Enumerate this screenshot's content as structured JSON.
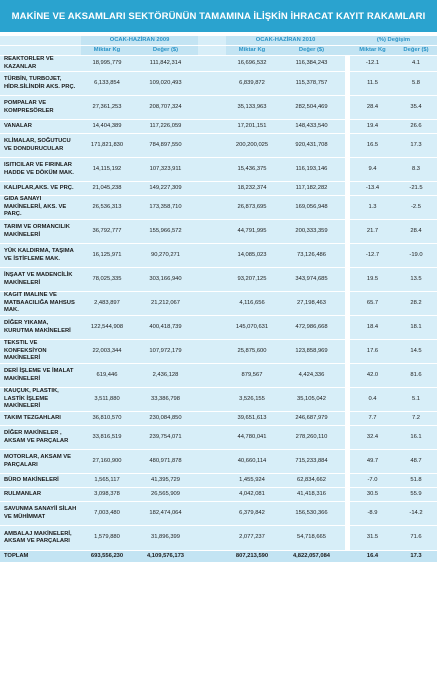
{
  "title": "MAKİNE VE AKSAMLARI SEKTÖRÜNÜN TAMAMINA İLİŞKİN İHRACAT KAYIT RAKAMLARI",
  "headers": {
    "period_2009": "OCAK-HAZİRAN 2009",
    "period_2010": "OCAK-HAZİRAN 2010",
    "change": "(%) Değişim",
    "miktar": "Miktar Kg",
    "deger": "Değer ($)"
  },
  "rows": [
    {
      "name": "REAKTÖRLER VE KAZANLAR",
      "q09": "18,995,779",
      "v09": "111,842,314",
      "q10": "16,696,532",
      "v10": "116,384,243",
      "dq": "-12.1",
      "dv": "4.1"
    },
    {
      "name": "TÜRBİN, TURBOJET, HİDR.SİLİNDİR AKS. PRÇ.",
      "q09": "6,133,854",
      "v09": "109,020,493",
      "q10": "6,839,872",
      "v10": "115,378,757",
      "dq": "11.5",
      "dv": "5.8"
    },
    {
      "name": "POMPALAR VE KOMPRESÖRLER",
      "q09": "27,361,253",
      "v09": "208,707,324",
      "q10": "35,133,963",
      "v10": "282,504,469",
      "dq": "28.4",
      "dv": "35.4"
    },
    {
      "name": "VANALAR",
      "q09": "14,404,389",
      "v09": "117,226,059",
      "q10": "17,201,151",
      "v10": "148,433,540",
      "dq": "19.4",
      "dv": "26.6"
    },
    {
      "name": "KLİMALAR, SOĞUTUCU VE DONDURUCULAR",
      "q09": "171,821,830",
      "v09": "784,897,550",
      "q10": "200,200,025",
      "v10": "920,431,708",
      "dq": "16.5",
      "dv": "17.3"
    },
    {
      "name": "ISITICILAR VE FIRINLAR HADDE VE DÖKÜM MAK.",
      "q09": "14,115,192",
      "v09": "107,323,911",
      "q10": "15,436,375",
      "v10": "116,193,146",
      "dq": "9.4",
      "dv": "8.3"
    },
    {
      "name": "KALIPLAR,AKS. VE PRÇ.",
      "q09": "21,045,238",
      "v09": "149,227,309",
      "q10": "18,232,374",
      "v10": "117,182,282",
      "dq": "-13.4",
      "dv": "-21.5"
    },
    {
      "name": "GIDA SANAYİ MAKİNELERİ, AKS. VE PARÇ.",
      "q09": "26,536,313",
      "v09": "173,358,710",
      "q10": "26,873,695",
      "v10": "169,056,948",
      "dq": "1.3",
      "dv": "-2.5"
    },
    {
      "name": "TARIM VE ORMANCILIK MAKİNELERİ",
      "q09": "36,792,777",
      "v09": "155,966,572",
      "q10": "44,791,995",
      "v10": "200,333,359",
      "dq": "21.7",
      "dv": "28.4"
    },
    {
      "name": "YÜK KALDIRMA, TAŞIMA VE İSTİFLEME MAK.",
      "q09": "16,125,971",
      "v09": "90,270,271",
      "q10": "14,085,023",
      "v10": "73,126,486",
      "dq": "-12.7",
      "dv": "-19.0"
    },
    {
      "name": "İNŞAAT VE MADENCİLİK MAKİNELERİ",
      "q09": "78,025,335",
      "v09": "303,166,940",
      "q10": "93,207,125",
      "v10": "343,974,685",
      "dq": "19.5",
      "dv": "13.5"
    },
    {
      "name": "KAĞIT İMALİNE VE MATBAACILIĞA MAHSUS MAK.",
      "q09": "2,483,897",
      "v09": "21,212,067",
      "q10": "4,116,656",
      "v10": "27,198,463",
      "dq": "65.7",
      "dv": "28.2"
    },
    {
      "name": "DİĞER YIKAMA, KURUTMA MAKİNELERİ",
      "q09": "122,544,908",
      "v09": "400,418,739",
      "q10": "145,070,631",
      "v10": "472,986,668",
      "dq": "18.4",
      "dv": "18.1"
    },
    {
      "name": "TEKSTİL VE KONFEKSİYON MAKİNELERİ",
      "q09": "22,003,344",
      "v09": "107,972,179",
      "q10": "25,875,600",
      "v10": "123,858,969",
      "dq": "17.6",
      "dv": "14.5"
    },
    {
      "name": "DERİ İŞLEME VE İMALAT MAKİNELERİ",
      "q09": "619,446",
      "v09": "2,436,128",
      "q10": "879,567",
      "v10": "4,424,336",
      "dq": "42.0",
      "dv": "81.6"
    },
    {
      "name": "KAUÇUK, PLASTİK, LASTİK İŞLEME MAKİNELERİ",
      "q09": "3,511,880",
      "v09": "33,386,798",
      "q10": "3,526,155",
      "v10": "35,105,042",
      "dq": "0.4",
      "dv": "5.1"
    },
    {
      "name": "TAKIM TEZGAHLARI",
      "q09": "36,810,570",
      "v09": "230,084,850",
      "q10": "39,651,613",
      "v10": "246,687,979",
      "dq": "7.7",
      "dv": "7.2"
    },
    {
      "name": "DİĞER MAKİNELER , AKSAM VE PARÇALAR",
      "q09": "33,816,519",
      "v09": "239,754,071",
      "q10": "44,780,041",
      "v10": "278,260,110",
      "dq": "32.4",
      "dv": "16.1"
    },
    {
      "name": "MOTORLAR, AKSAM VE PARÇALARI",
      "q09": "27,160,900",
      "v09": "480,971,878",
      "q10": "40,660,114",
      "v10": "715,233,884",
      "dq": "49.7",
      "dv": "48.7"
    },
    {
      "name": "BÜRO MAKİNELERİ",
      "q09": "1,565,117",
      "v09": "41,395,729",
      "q10": "1,455,924",
      "v10": "62,834,662",
      "dq": "-7.0",
      "dv": "51.8"
    },
    {
      "name": "RULMANLAR",
      "q09": "3,098,378",
      "v09": "26,565,909",
      "q10": "4,042,081",
      "v10": "41,418,316",
      "dq": "30.5",
      "dv": "55.9"
    },
    {
      "name": "SAVUNMA SANAYİİ SİLAH VE MÜHİMMAT",
      "q09": "7,003,480",
      "v09": "182,474,064",
      "q10": "6,379,842",
      "v10": "156,530,366",
      "dq": "-8.9",
      "dv": "-14.2"
    },
    {
      "name": "AMBALAJ MAKİNELERİ, AKSAM VE PARÇALARI",
      "q09": "1,579,880",
      "v09": "31,896,399",
      "q10": "2,077,237",
      "v10": "54,718,665",
      "dq": "31.5",
      "dv": "71.6"
    }
  ],
  "total": {
    "name": "TOPLAM",
    "q09": "693,556,230",
    "v09": "4,109,576,173",
    "q10": "807,213,590",
    "v10": "4,822,057,084",
    "dq": "16.4",
    "dv": "17.3"
  }
}
